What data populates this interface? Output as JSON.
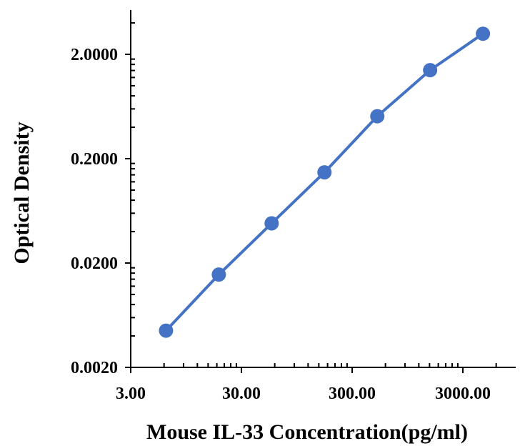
{
  "chart_data": {
    "type": "line",
    "title": "",
    "xlabel": "Mouse IL-33  Concentration(pg/ml)",
    "ylabel": "Optical Density",
    "x_scale": "log",
    "y_scale": "log",
    "xlim": [
      3,
      6000
    ],
    "ylim": [
      0.002,
      6.0
    ],
    "x_ticks": [
      {
        "value": 3,
        "label": "3.00"
      },
      {
        "value": 30,
        "label": "30.00"
      },
      {
        "value": 300,
        "label": "300.00"
      },
      {
        "value": 3000,
        "label": "3000.00"
      }
    ],
    "y_ticks": [
      {
        "value": 0.002,
        "label": "0.0020"
      },
      {
        "value": 0.02,
        "label": "0.0200"
      },
      {
        "value": 0.2,
        "label": "0.2000"
      },
      {
        "value": 2.0,
        "label": "2.0000"
      }
    ],
    "grid": false,
    "legend": "none",
    "series": [
      {
        "color": "#4472c4",
        "points": [
          {
            "x": 6.25,
            "y": 0.0045
          },
          {
            "x": 18.75,
            "y": 0.0155
          },
          {
            "x": 56.25,
            "y": 0.048
          },
          {
            "x": 168.75,
            "y": 0.148
          },
          {
            "x": 506.25,
            "y": 0.51
          },
          {
            "x": 1518.75,
            "y": 1.41
          },
          {
            "x": 4556.25,
            "y": 3.15
          }
        ]
      }
    ]
  }
}
